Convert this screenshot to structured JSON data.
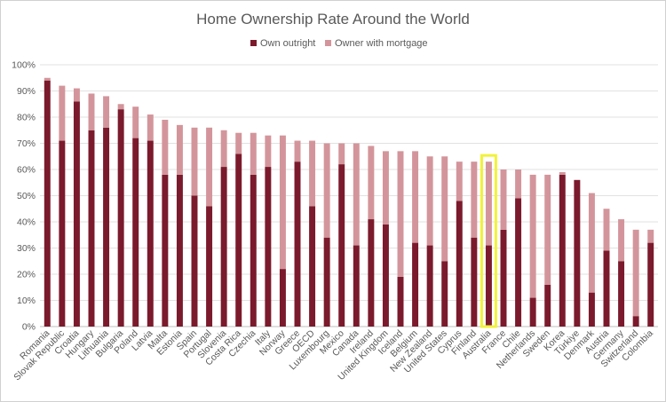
{
  "chart_data": {
    "type": "bar",
    "stacked": true,
    "title": "Home Ownership Rate Around the World",
    "xlabel": "",
    "ylabel": "",
    "ylim": [
      0,
      100
    ],
    "yticks": [
      "0%",
      "10%",
      "20%",
      "30%",
      "40%",
      "50%",
      "60%",
      "70%",
      "80%",
      "90%",
      "100%"
    ],
    "grid": true,
    "legend_position": "top",
    "highlighted_category": "Australia",
    "highlight_color": "#f2f23a",
    "colors": {
      "own_outright": "#7b1a2c",
      "with_mortgage": "#d3959b"
    },
    "categories": [
      "Romania",
      "Slovak Republic",
      "Croatia",
      "Hungary",
      "Lithuania",
      "Bulgaria",
      "Poland",
      "Latvia",
      "Malta",
      "Estonia",
      "Spain",
      "Portugal",
      "Slovenia",
      "Costa Rica",
      "Czechia",
      "Italy",
      "Norway",
      "Greece",
      "OECD",
      "Luxembourg",
      "Mexico",
      "Canada",
      "Ireland",
      "United Kingdom",
      "Iceland",
      "Belgium",
      "New Zealand",
      "United States",
      "Cyprus",
      "Finland",
      "Australia",
      "France",
      "Chile",
      "Netherlands",
      "Sweden",
      "Korea",
      "Türkiye",
      "Denmark",
      "Austria",
      "Germany",
      "Switzerland",
      "Colombia"
    ],
    "series": [
      {
        "name": "Own outright",
        "values": [
          94,
          71,
          86,
          75,
          76,
          83,
          72,
          71,
          58,
          58,
          50,
          46,
          61,
          66,
          58,
          61,
          22,
          63,
          46,
          34,
          62,
          31,
          41,
          39,
          19,
          32,
          31,
          25,
          48,
          34,
          31,
          37,
          49,
          11,
          16,
          58,
          56,
          13,
          29,
          25,
          4,
          32
        ]
      },
      {
        "name": "Owner with mortgage",
        "values": [
          1,
          21,
          5,
          14,
          12,
          2,
          12,
          10,
          21,
          19,
          26,
          30,
          14,
          8,
          16,
          12,
          51,
          8,
          25,
          36,
          8,
          39,
          28,
          28,
          48,
          35,
          34,
          40,
          15,
          29,
          32,
          23,
          11,
          47,
          42,
          1,
          0,
          38,
          16,
          16,
          33,
          5
        ]
      }
    ]
  }
}
